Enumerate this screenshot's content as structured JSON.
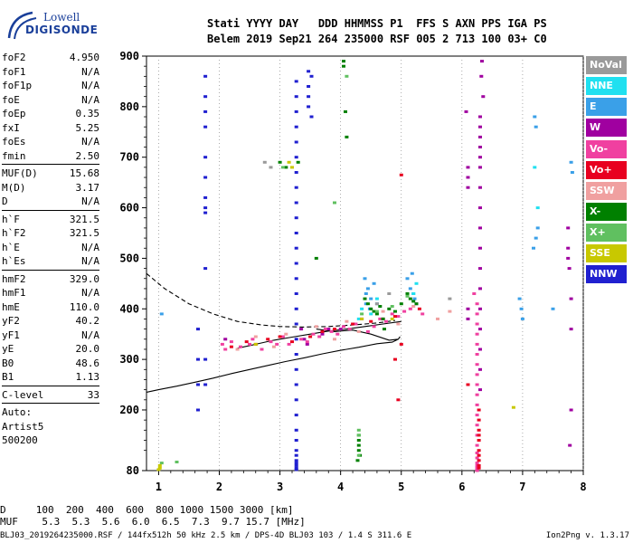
{
  "logo": {
    "line1": "Lowell",
    "line2": "DIGISONDE"
  },
  "header": {
    "labels": "Stati YYYY DAY   DDD HHMMSS P1  FFS S AXN PPS IGA PS",
    "values": "Belem 2019 Sep21 264 235000 RSF 005 2 713 100 03+ C0"
  },
  "params": {
    "group1": [
      {
        "name": "foF2",
        "value": "4.950"
      },
      {
        "name": "foF1",
        "value": "N/A"
      },
      {
        "name": "foF1p",
        "value": "N/A"
      },
      {
        "name": "foE",
        "value": "N/A"
      },
      {
        "name": "foEp",
        "value": "0.35"
      },
      {
        "name": "fxI",
        "value": "5.25"
      },
      {
        "name": "foEs",
        "value": "N/A"
      },
      {
        "name": "fmin",
        "value": "2.50"
      }
    ],
    "group2": [
      {
        "name": "MUF(D)",
        "value": "15.68"
      },
      {
        "name": "M(D)",
        "value": "3.17"
      },
      {
        "name": "D",
        "value": "N/A"
      }
    ],
    "group3": [
      {
        "name": "h`F",
        "value": "321.5"
      },
      {
        "name": "h`F2",
        "value": "321.5"
      },
      {
        "name": "h`E",
        "value": "N/A"
      },
      {
        "name": "h`Es",
        "value": "N/A"
      }
    ],
    "group4": [
      {
        "name": "hmF2",
        "value": "329.0"
      },
      {
        "name": "hmF1",
        "value": "N/A"
      },
      {
        "name": "hmE",
        "value": "110.0"
      },
      {
        "name": "yF2",
        "value": "40.2"
      },
      {
        "name": "yF1",
        "value": "N/A"
      },
      {
        "name": "yE",
        "value": "20.0"
      },
      {
        "name": "B0",
        "value": "48.6"
      },
      {
        "name": "B1",
        "value": "1.13"
      }
    ],
    "group5": [
      {
        "name": "C-level",
        "value": "33"
      }
    ],
    "auto_label": "Auto:",
    "artist": "Artist5",
    "artist_version": "500200"
  },
  "legend": [
    {
      "label": "NoVal",
      "color": "#9a9a9a"
    },
    {
      "label": "NNE",
      "color": "#20e0f0"
    },
    {
      "label": "E",
      "color": "#3aa0e8"
    },
    {
      "label": "W",
      "color": "#a000a0"
    },
    {
      "label": "Vo-",
      "color": "#f040a0"
    },
    {
      "label": "Vo+",
      "color": "#e80020"
    },
    {
      "label": "SSW",
      "color": "#f0a0a0"
    },
    {
      "label": "X-",
      "color": "#008000"
    },
    {
      "label": "X+",
      "color": "#60c060"
    },
    {
      "label": "SSE",
      "color": "#c8c800"
    },
    {
      "label": "NNW",
      "color": "#2020d0"
    }
  ],
  "footer": {
    "d_row": "D     100  200  400  600  800 1000 1500 3000 [km]",
    "muf_row": "MUF    5.3  5.3  5.6  6.0  6.5  7.3  9.7 15.7 [MHz]",
    "file_info": "BLJ03_2019264235000.RSF / 144fx512h 50 kHz 2.5 km / DPS-4D BLJ03 103 / 1.4 S 311.6 E",
    "version": "Ion2Png v. 1.3.17"
  },
  "chart_data": {
    "type": "scatter",
    "x_ticks": [
      1,
      2,
      3,
      4,
      5,
      6,
      7,
      8
    ],
    "y_ticks": [
      80,
      200,
      300,
      400,
      500,
      600,
      700,
      800,
      900
    ],
    "xlim": [
      0.8,
      8.0
    ],
    "ylim": [
      80,
      900
    ],
    "grid": "vertical dashed gridlines at each frequency tick",
    "series": [
      {
        "name": "NNW",
        "color": "#2020d0",
        "x": [
          3.27,
          3.27,
          3.27,
          3.27,
          3.27,
          3.27,
          3.27,
          3.27,
          3.27,
          3.27,
          3.27,
          3.27,
          3.27,
          3.27,
          3.27,
          3.27,
          3.27,
          3.27,
          3.27,
          3.27,
          3.27,
          3.27,
          3.27,
          3.27,
          3.27,
          3.27,
          3.27,
          3.27,
          3.27,
          3.27,
          3.27,
          3.27,
          1.77,
          1.77,
          1.77,
          1.77,
          1.77,
          1.77,
          1.77,
          1.77,
          1.77,
          1.77,
          1.77,
          1.77,
          3.47,
          3.47,
          3.47,
          3.47,
          3.52,
          3.52,
          1.65,
          1.65,
          1.65,
          1.65
        ],
        "y": [
          850,
          820,
          790,
          760,
          730,
          700,
          670,
          640,
          610,
          580,
          550,
          520,
          490,
          460,
          430,
          400,
          370,
          340,
          310,
          280,
          250,
          220,
          190,
          160,
          140,
          120,
          110,
          100,
          95,
          90,
          85,
          82,
          860,
          820,
          790,
          760,
          700,
          660,
          620,
          600,
          590,
          480,
          300,
          250,
          870,
          840,
          820,
          800,
          860,
          780,
          360,
          300,
          250,
          200
        ]
      },
      {
        "name": "E",
        "color": "#3aa0e8",
        "x": [
          4.42,
          4.42,
          4.45,
          4.48,
          4.5,
          4.55,
          4.6,
          5.1,
          5.15,
          5.18,
          5.2,
          5.22,
          5.25,
          7.2,
          7.22,
          7.25,
          7.22,
          7.18,
          6.95,
          6.98,
          7.0,
          7.8,
          7.82,
          7.5,
          1.05,
          4.4
        ],
        "y": [
          430,
          410,
          440,
          400,
          420,
          450,
          410,
          460,
          440,
          470,
          430,
          420,
          410,
          780,
          760,
          560,
          540,
          520,
          420,
          400,
          380,
          690,
          670,
          400,
          390,
          460
        ]
      },
      {
        "name": "NNE",
        "color": "#20e0f0",
        "x": [
          4.3,
          4.35,
          4.5,
          4.6,
          5.2,
          5.25,
          7.2,
          7.25
        ],
        "y": [
          380,
          400,
          390,
          420,
          430,
          450,
          680,
          600
        ]
      },
      {
        "name": "W",
        "color": "#a000a0",
        "x": [
          6.3,
          6.3,
          6.3,
          6.3,
          6.3,
          6.3,
          6.3,
          6.3,
          6.3,
          6.3,
          6.3,
          6.3,
          6.3,
          6.3,
          6.3,
          6.3,
          6.3,
          6.33,
          6.35,
          6.32,
          6.07,
          6.1,
          6.1,
          6.1,
          6.1,
          6.1,
          7.75,
          7.75,
          7.75,
          7.77,
          7.8,
          7.8,
          7.8,
          7.78,
          3.35,
          3.4,
          3.45,
          3.7,
          3.8,
          4.0,
          2.1
        ],
        "y": [
          780,
          760,
          740,
          720,
          700,
          680,
          640,
          600,
          560,
          520,
          480,
          440,
          400,
          360,
          320,
          280,
          240,
          890,
          820,
          860,
          790,
          680,
          660,
          640,
          400,
          380,
          560,
          520,
          500,
          480,
          420,
          360,
          200,
          130,
          360,
          340,
          330,
          350,
          360,
          360,
          340
        ]
      },
      {
        "name": "Vo-",
        "color": "#f040a0",
        "x": [
          2.05,
          2.1,
          2.2,
          2.35,
          2.5,
          2.55,
          2.7,
          2.85,
          2.95,
          3.05,
          3.15,
          3.35,
          3.45,
          3.55,
          3.65,
          3.75,
          3.85,
          3.95,
          4.05,
          4.15,
          4.25,
          4.35,
          4.45,
          4.55,
          4.65,
          4.75,
          4.85,
          4.95,
          5.05,
          5.15,
          5.25,
          5.35,
          6.2,
          6.25,
          6.25,
          6.25,
          6.25,
          6.25,
          6.25,
          6.25,
          6.25,
          6.25,
          6.25,
          6.25,
          6.25,
          6.25,
          6.25,
          6.25,
          6.25,
          6.25,
          6.25,
          6.25,
          6.25,
          6.25,
          6.25,
          6.25,
          6.25
        ],
        "y": [
          330,
          320,
          335,
          325,
          330,
          340,
          320,
          335,
          330,
          345,
          330,
          340,
          335,
          350,
          345,
          360,
          355,
          350,
          365,
          360,
          370,
          380,
          355,
          365,
          380,
          375,
          390,
          385,
          395,
          400,
          410,
          390,
          430,
          410,
          390,
          370,
          350,
          330,
          310,
          290,
          270,
          250,
          230,
          210,
          190,
          170,
          150,
          130,
          115,
          105,
          95,
          90,
          86,
          84,
          82,
          81,
          80
        ]
      },
      {
        "name": "Vo+",
        "color": "#e80020",
        "x": [
          2.2,
          2.45,
          2.6,
          2.8,
          3.0,
          3.2,
          3.5,
          3.7,
          3.9,
          4.2,
          4.5,
          4.7,
          4.9,
          5.0,
          5.3,
          6.1,
          6.28,
          6.28,
          6.28,
          6.28,
          6.28,
          6.28,
          6.28,
          6.28,
          6.28,
          6.28,
          5.0,
          4.95,
          4.9
        ],
        "y": [
          325,
          335,
          330,
          340,
          345,
          335,
          345,
          355,
          360,
          370,
          375,
          380,
          385,
          665,
          400,
          250,
          200,
          180,
          160,
          150,
          140,
          120,
          110,
          100,
          90,
          85,
          330,
          220,
          300
        ]
      },
      {
        "name": "SSW",
        "color": "#f0a0a0",
        "x": [
          2.3,
          2.6,
          2.9,
          3.1,
          3.6,
          3.9,
          4.1,
          4.3,
          4.7,
          4.95,
          5.2,
          5.6,
          5.8
        ],
        "y": [
          320,
          345,
          325,
          350,
          365,
          340,
          375,
          355,
          395,
          370,
          405,
          380,
          395
        ]
      },
      {
        "name": "X-",
        "color": "#008000",
        "x": [
          4.05,
          4.05,
          4.08,
          4.1,
          3.3,
          3.6,
          4.4,
          4.45,
          4.5,
          4.55,
          4.6,
          4.65,
          4.7,
          4.8,
          4.9,
          5.0,
          5.1,
          5.15,
          5.2,
          5.25,
          4.3,
          4.3,
          4.3,
          4.3,
          4.32,
          4.28,
          3.0,
          3.1,
          4.72
        ],
        "y": [
          890,
          880,
          790,
          740,
          690,
          500,
          420,
          410,
          400,
          395,
          390,
          405,
          380,
          400,
          395,
          410,
          430,
          420,
          415,
          410,
          150,
          140,
          130,
          120,
          110,
          100,
          690,
          680,
          360
        ]
      },
      {
        "name": "X+",
        "color": "#60c060",
        "x": [
          3.05,
          4.1,
          4.35,
          4.6,
          4.85,
          5.1,
          4.3,
          4.3,
          4.3,
          3.9,
          1.05,
          1.3
        ],
        "y": [
          680,
          860,
          390,
          395,
          405,
          425,
          160,
          150,
          110,
          610,
          95,
          97
        ]
      },
      {
        "name": "SSE",
        "color": "#c8c800",
        "x": [
          1.02,
          1.02,
          1.0,
          3.15,
          3.2,
          4.35,
          4.85,
          6.85,
          2.6
        ],
        "y": [
          90,
          85,
          82,
          690,
          680,
          380,
          380,
          205,
          330
        ]
      },
      {
        "name": "NoVal",
        "color": "#9a9a9a",
        "x": [
          2.75,
          2.85,
          4.6,
          4.8,
          5.8
        ],
        "y": [
          690,
          680,
          410,
          430,
          420
        ]
      }
    ],
    "profiles": [
      {
        "style": "solid",
        "x": [
          0.8,
          1.0,
          1.3,
          1.6,
          1.9,
          2.2,
          2.5,
          2.8,
          3.1,
          3.4,
          3.7,
          4.0,
          4.3,
          4.6,
          4.85,
          4.95,
          4.98,
          4.95,
          4.8,
          4.5,
          4.2,
          3.9,
          3.6
        ],
        "y": [
          235,
          240,
          247,
          255,
          263,
          272,
          280,
          288,
          296,
          303,
          311,
          318,
          324,
          331,
          334,
          340,
          345,
          340,
          338,
          350,
          358,
          355,
          360
        ]
      },
      {
        "style": "dashed",
        "x": [
          0.8,
          1.1,
          1.5,
          1.9,
          2.3,
          2.7,
          3.0,
          3.4,
          3.8,
          4.2,
          4.6,
          4.9
        ],
        "y": [
          470,
          440,
          410,
          390,
          375,
          368,
          365,
          364,
          365,
          368,
          372,
          377
        ]
      },
      {
        "style": "solid",
        "x": [
          2.3,
          2.6,
          2.9,
          3.2,
          3.5,
          3.8,
          4.1,
          4.4,
          4.7,
          5.0
        ],
        "y": [
          322,
          330,
          338,
          344,
          350,
          356,
          360,
          365,
          370,
          375
        ]
      }
    ]
  }
}
